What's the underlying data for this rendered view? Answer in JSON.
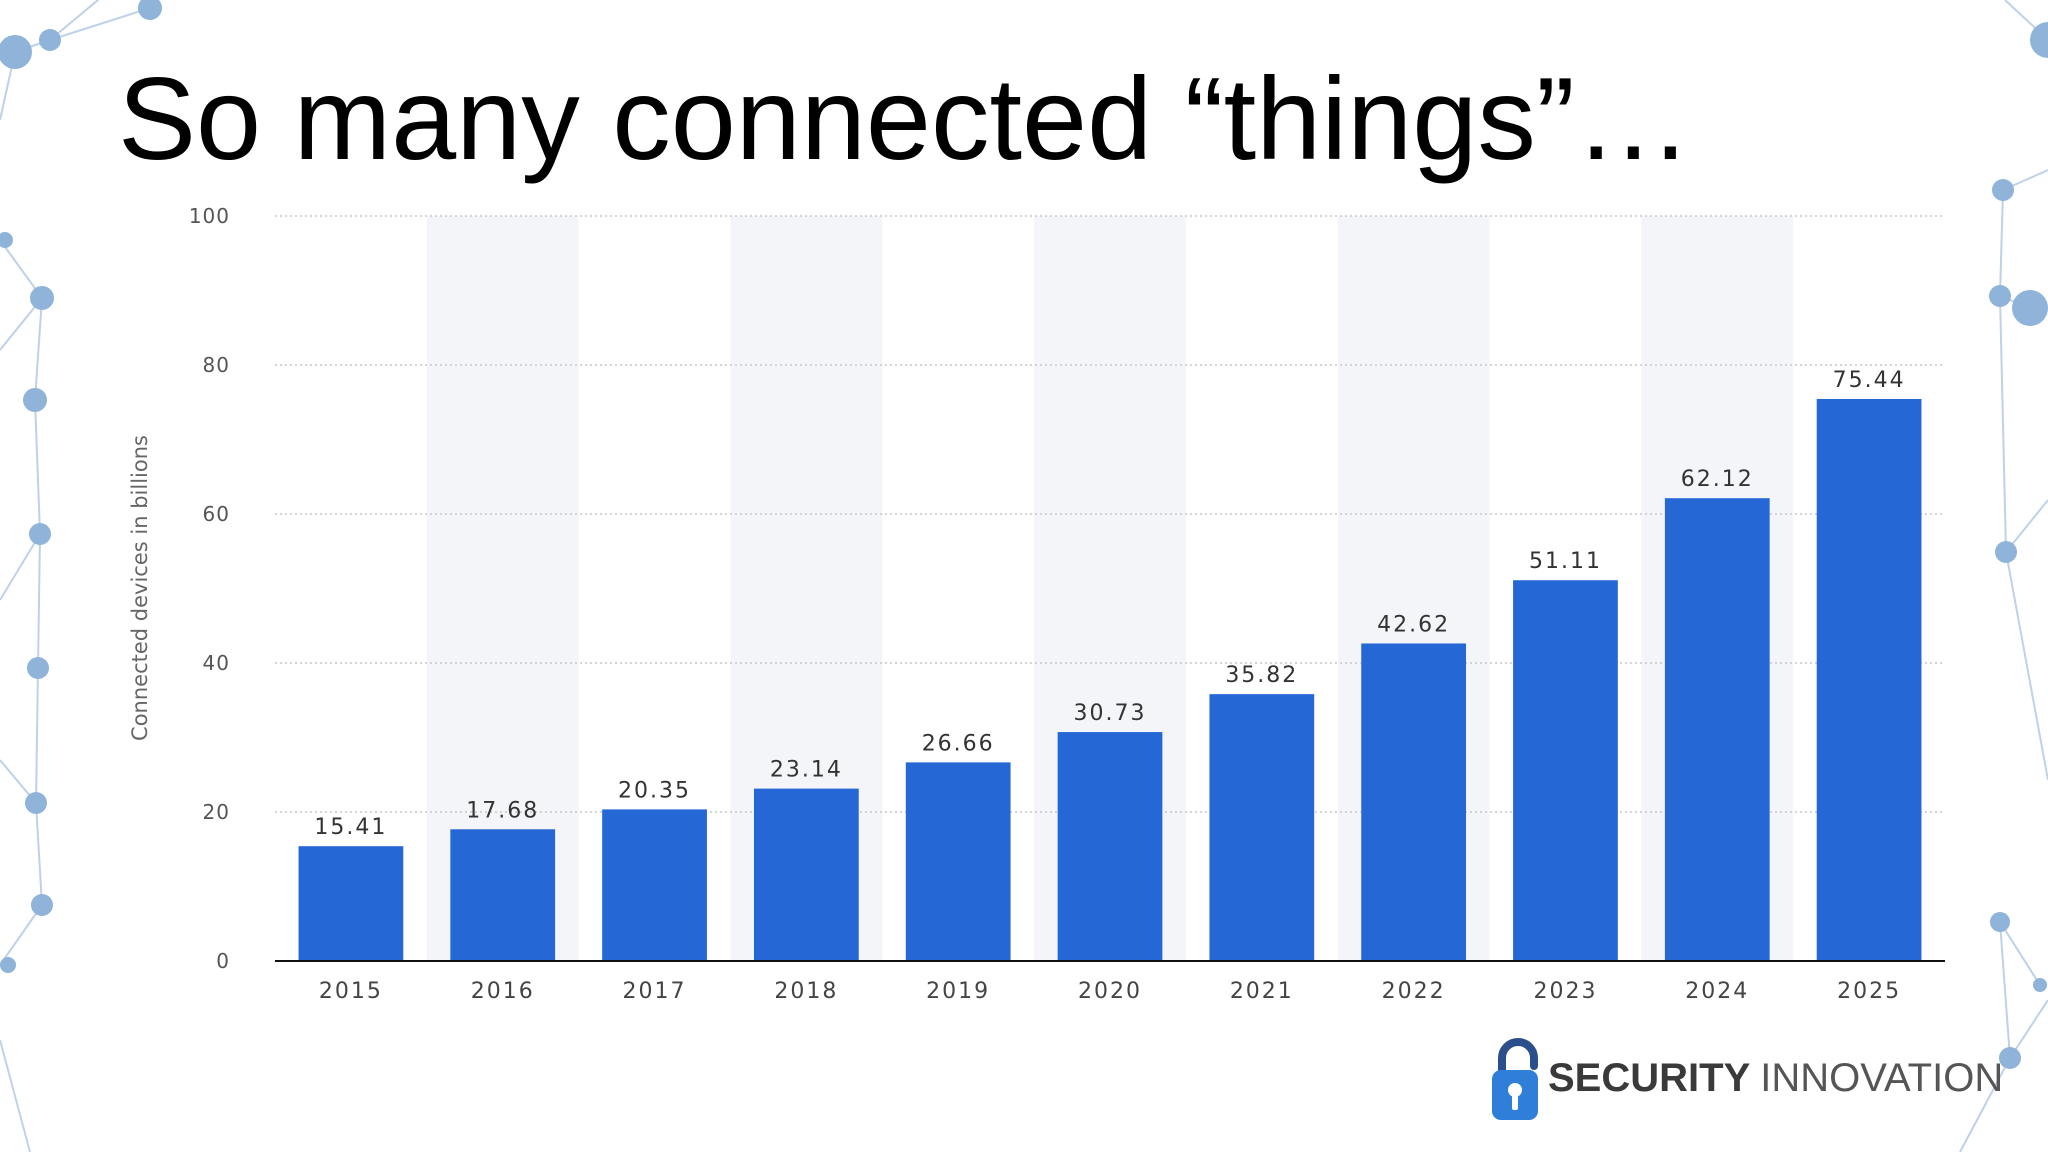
{
  "slide": {
    "title": "So many connected “things”…"
  },
  "logo": {
    "word1": "SECURITY",
    "word2": "INNOVATION"
  },
  "colors": {
    "bar": "#2667d6",
    "band": "#f4f5f9",
    "grid": "#c7c7c7",
    "axis": "#111111",
    "decoration": "#8fb3d9"
  },
  "chart_data": {
    "type": "bar",
    "title": "",
    "xlabel": "",
    "ylabel": "Connected devices in billions",
    "ylim": [
      0,
      100
    ],
    "yticks": [
      0,
      20,
      40,
      60,
      80,
      100
    ],
    "grid": true,
    "categories": [
      "2015",
      "2016",
      "2017",
      "2018",
      "2019",
      "2020",
      "2021",
      "2022",
      "2023",
      "2024",
      "2025"
    ],
    "values": [
      15.41,
      17.68,
      20.35,
      23.14,
      26.66,
      30.73,
      35.82,
      42.62,
      51.11,
      62.12,
      75.44
    ],
    "data_labels": [
      "15.41",
      "17.68",
      "20.35",
      "23.14",
      "26.66",
      "30.73",
      "35.82",
      "42.62",
      "51.11",
      "62.12",
      "75.44"
    ]
  }
}
